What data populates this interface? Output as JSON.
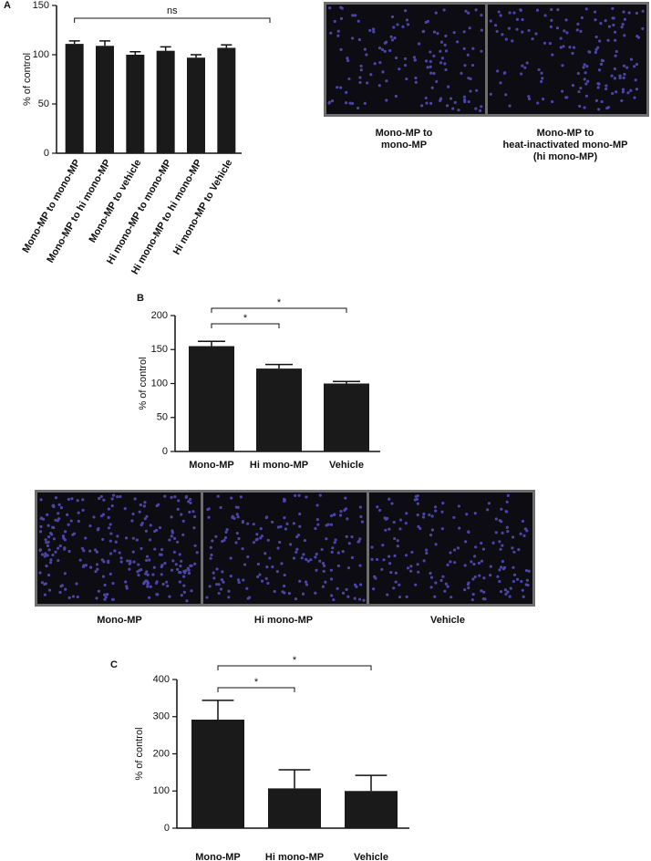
{
  "chart_data": [
    {
      "type": "bar",
      "panel": "A",
      "ylabel": "% of control",
      "categories": [
        "Mono-MP to mono-MP",
        "Mono-MP to hi mono-MP",
        "Mono-MP to vehicle",
        "Hi mono-MP to mono-MP",
        "Hi mono-MP to hi mono-MP",
        "Hi mono-MP to Vehicle"
      ],
      "values": [
        111,
        109,
        100,
        104,
        97,
        107
      ],
      "errors": [
        3,
        5,
        3,
        4,
        3,
        3
      ],
      "color": "#1a1a1a",
      "ylim": [
        0,
        150
      ],
      "yticks": [
        0,
        50,
        100,
        150
      ],
      "annotations": [
        {
          "text": "ns",
          "from": 0,
          "to": 5
        }
      ]
    },
    {
      "type": "bar",
      "panel": "B",
      "ylabel": "% of control",
      "categories": [
        "Mono-MP",
        "Hi mono-MP",
        "Vehicle"
      ],
      "values": [
        155,
        122,
        100
      ],
      "errors": [
        7,
        6,
        3
      ],
      "color": "#1a1a1a",
      "ylim": [
        0,
        200
      ],
      "yticks": [
        0,
        50,
        100,
        150,
        200
      ],
      "annotations": [
        {
          "text": "*",
          "from": 0,
          "to": 1
        },
        {
          "text": "*",
          "from": 0,
          "to": 2
        }
      ]
    },
    {
      "type": "bar",
      "panel": "C",
      "ylabel": "% of control",
      "categories": [
        "Mono-MP",
        "Hi mono-MP",
        "Vehicle"
      ],
      "values": [
        292,
        107,
        100
      ],
      "errors": [
        52,
        50,
        42
      ],
      "color": "#1a1a1a",
      "ylim": [
        0,
        400
      ],
      "yticks": [
        0,
        100,
        200,
        300,
        400
      ],
      "annotations": [
        {
          "text": "*",
          "from": 0,
          "to": 1
        },
        {
          "text": "*",
          "from": 0,
          "to": 2
        }
      ]
    }
  ],
  "images": {
    "a": [
      "Mono-MP to\nmono-MP",
      "Mono-MP to\nheat-inactivated mono-MP\n(hi mono-MP)"
    ],
    "b": [
      "Mono-MP",
      "Hi mono-MP",
      "Vehicle"
    ]
  }
}
